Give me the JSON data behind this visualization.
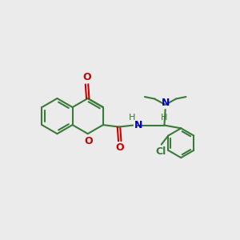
{
  "background_color": "#ebebeb",
  "bond_color": "#3a7a3a",
  "bond_width": 1.5,
  "oxygen_color": "#cc0000",
  "nitrogen_color": "#0000cc",
  "chlorine_color": "#3a7a3a",
  "figsize": [
    3.0,
    3.0
  ],
  "dpi": 100,
  "xlim": [
    0,
    12
  ],
  "ylim": [
    0,
    12
  ]
}
